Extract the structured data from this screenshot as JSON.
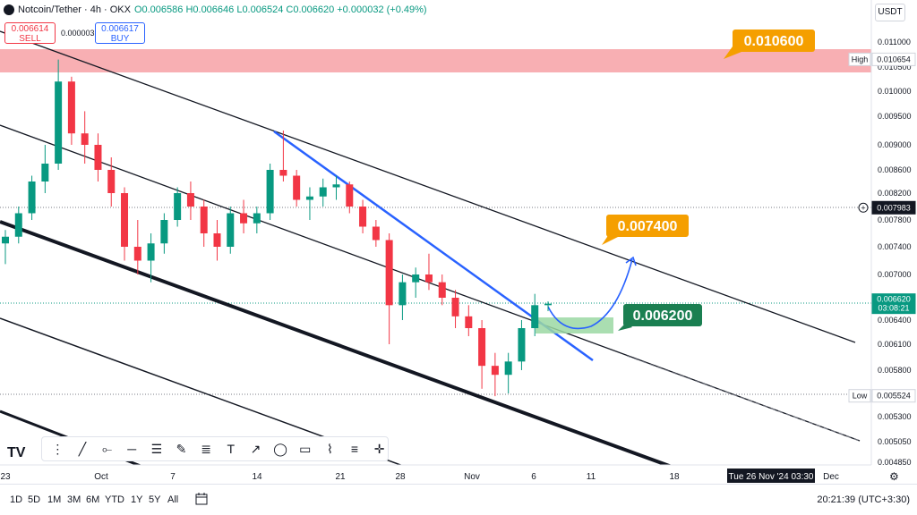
{
  "header": {
    "symbol": "Notcoin/Tether · 4h · OKX",
    "ohlc": "O0.006586 H0.006646 L0.006524 C0.006620 +0.000032 (+0.49%)",
    "sell_price": "0.006614",
    "sell_label": "SELL",
    "spread": "0.000003",
    "buy_price": "0.006617",
    "buy_label": "BUY",
    "currency": "USDT"
  },
  "bottom_bar": {
    "timeframes": [
      "1D",
      "5D",
      "1M",
      "3M",
      "6M",
      "YTD",
      "1Y",
      "5Y",
      "All"
    ],
    "clock": "20:21:39 (UTC+3:30)"
  },
  "colors": {
    "up": "#089981",
    "down": "#f23645",
    "resistance_zone": "#f7a1a6",
    "target_zone": "#9bd8a3",
    "trendline": "#2962ff",
    "callout_orange": "#f59f00",
    "callout_green": "#1a7f51"
  },
  "chart_data": {
    "type": "candlestick",
    "ylim": [
      0.0048,
      0.0111
    ],
    "y_ticks": [
      "0.011000",
      "0.010500",
      "0.010000",
      "0.009500",
      "0.009000",
      "0.008600",
      "0.008200",
      "0.007800",
      "0.007400",
      "0.007000",
      "0.006700",
      "0.006400",
      "0.006100",
      "0.005800",
      "0.005300",
      "0.005050",
      "0.004850"
    ],
    "x_ticks": [
      "23",
      "Oct",
      "7",
      "14",
      "21",
      "28",
      "Nov",
      "6",
      "11",
      "18",
      "Dec"
    ],
    "x_date_label": "Tue 26 Nov '24  03:30",
    "price_labels": [
      {
        "tag": "High",
        "value": "0.010654",
        "price": 0.010654
      },
      {
        "tag": "",
        "value": "0.007983",
        "price": 0.007983
      },
      {
        "tag": "",
        "value": "0.006620",
        "sub": "03:08:21",
        "price": 0.00662
      },
      {
        "tag": "Low",
        "value": "0.005524",
        "price": 0.005524
      }
    ],
    "resistance_zone": [
      0.0104,
      0.01088
    ],
    "target_zone": [
      0.00622,
      0.00644
    ],
    "callouts": [
      "0.010600",
      "0.007400",
      "0.006200"
    ],
    "ohlc": [
      {
        "t": 0,
        "o": 0.00745,
        "h": 0.00765,
        "l": 0.00715,
        "c": 0.00755
      },
      {
        "t": 8,
        "o": 0.00755,
        "h": 0.008,
        "l": 0.00745,
        "c": 0.0079
      },
      {
        "t": 16,
        "o": 0.0079,
        "h": 0.0085,
        "l": 0.0078,
        "c": 0.0084
      },
      {
        "t": 24,
        "o": 0.0084,
        "h": 0.009,
        "l": 0.0082,
        "c": 0.0087
      },
      {
        "t": 32,
        "o": 0.0087,
        "h": 0.01065,
        "l": 0.0086,
        "c": 0.0102
      },
      {
        "t": 40,
        "o": 0.0102,
        "h": 0.0103,
        "l": 0.009,
        "c": 0.0092
      },
      {
        "t": 48,
        "o": 0.0092,
        "h": 0.0096,
        "l": 0.0087,
        "c": 0.009
      },
      {
        "t": 56,
        "o": 0.009,
        "h": 0.0092,
        "l": 0.0084,
        "c": 0.0086
      },
      {
        "t": 64,
        "o": 0.0086,
        "h": 0.0088,
        "l": 0.008,
        "c": 0.0082
      },
      {
        "t": 72,
        "o": 0.0082,
        "h": 0.0083,
        "l": 0.0072,
        "c": 0.0074
      },
      {
        "t": 80,
        "o": 0.0074,
        "h": 0.0078,
        "l": 0.007,
        "c": 0.0072
      },
      {
        "t": 88,
        "o": 0.0072,
        "h": 0.0076,
        "l": 0.0069,
        "c": 0.00745
      },
      {
        "t": 96,
        "o": 0.00745,
        "h": 0.0079,
        "l": 0.0073,
        "c": 0.0078
      },
      {
        "t": 104,
        "o": 0.0078,
        "h": 0.0083,
        "l": 0.0077,
        "c": 0.0082
      },
      {
        "t": 112,
        "o": 0.0082,
        "h": 0.0084,
        "l": 0.0078,
        "c": 0.008
      },
      {
        "t": 120,
        "o": 0.008,
        "h": 0.0081,
        "l": 0.0074,
        "c": 0.0076
      },
      {
        "t": 128,
        "o": 0.0076,
        "h": 0.0078,
        "l": 0.0072,
        "c": 0.0074
      },
      {
        "t": 136,
        "o": 0.0074,
        "h": 0.008,
        "l": 0.0073,
        "c": 0.0079
      },
      {
        "t": 144,
        "o": 0.0079,
        "h": 0.0081,
        "l": 0.0076,
        "c": 0.00775
      },
      {
        "t": 152,
        "o": 0.00775,
        "h": 0.008,
        "l": 0.0076,
        "c": 0.0079
      },
      {
        "t": 160,
        "o": 0.0079,
        "h": 0.0087,
        "l": 0.0078,
        "c": 0.0086
      },
      {
        "t": 168,
        "o": 0.0086,
        "h": 0.00925,
        "l": 0.0084,
        "c": 0.0085
      },
      {
        "t": 176,
        "o": 0.0085,
        "h": 0.0086,
        "l": 0.008,
        "c": 0.0081
      },
      {
        "t": 184,
        "o": 0.0081,
        "h": 0.0083,
        "l": 0.0078,
        "c": 0.00815
      },
      {
        "t": 192,
        "o": 0.00815,
        "h": 0.00845,
        "l": 0.008,
        "c": 0.0083
      },
      {
        "t": 200,
        "o": 0.0083,
        "h": 0.0085,
        "l": 0.0081,
        "c": 0.00835
      },
      {
        "t": 208,
        "o": 0.00835,
        "h": 0.0084,
        "l": 0.0079,
        "c": 0.008
      },
      {
        "t": 216,
        "o": 0.008,
        "h": 0.0081,
        "l": 0.0076,
        "c": 0.0077
      },
      {
        "t": 224,
        "o": 0.0077,
        "h": 0.0078,
        "l": 0.0074,
        "c": 0.0075
      },
      {
        "t": 232,
        "o": 0.0075,
        "h": 0.0076,
        "l": 0.0061,
        "c": 0.0066
      },
      {
        "t": 240,
        "o": 0.0066,
        "h": 0.007,
        "l": 0.0064,
        "c": 0.0069
      },
      {
        "t": 248,
        "o": 0.0069,
        "h": 0.0071,
        "l": 0.0067,
        "c": 0.007
      },
      {
        "t": 256,
        "o": 0.007,
        "h": 0.0073,
        "l": 0.0068,
        "c": 0.0069
      },
      {
        "t": 264,
        "o": 0.0069,
        "h": 0.007,
        "l": 0.0066,
        "c": 0.0067
      },
      {
        "t": 272,
        "o": 0.0067,
        "h": 0.0068,
        "l": 0.0063,
        "c": 0.00645
      },
      {
        "t": 280,
        "o": 0.00645,
        "h": 0.0066,
        "l": 0.0062,
        "c": 0.0063
      },
      {
        "t": 288,
        "o": 0.0063,
        "h": 0.0064,
        "l": 0.0056,
        "c": 0.00585
      },
      {
        "t": 296,
        "o": 0.00585,
        "h": 0.006,
        "l": 0.00552,
        "c": 0.00575
      },
      {
        "t": 304,
        "o": 0.00575,
        "h": 0.006,
        "l": 0.00555,
        "c": 0.0059
      },
      {
        "t": 312,
        "o": 0.0059,
        "h": 0.0064,
        "l": 0.0058,
        "c": 0.0063
      },
      {
        "t": 320,
        "o": 0.0063,
        "h": 0.00675,
        "l": 0.0062,
        "c": 0.0066
      },
      {
        "t": 328,
        "o": 0.0066,
        "h": 0.00665,
        "l": 0.00652,
        "c": 0.00662
      }
    ]
  }
}
